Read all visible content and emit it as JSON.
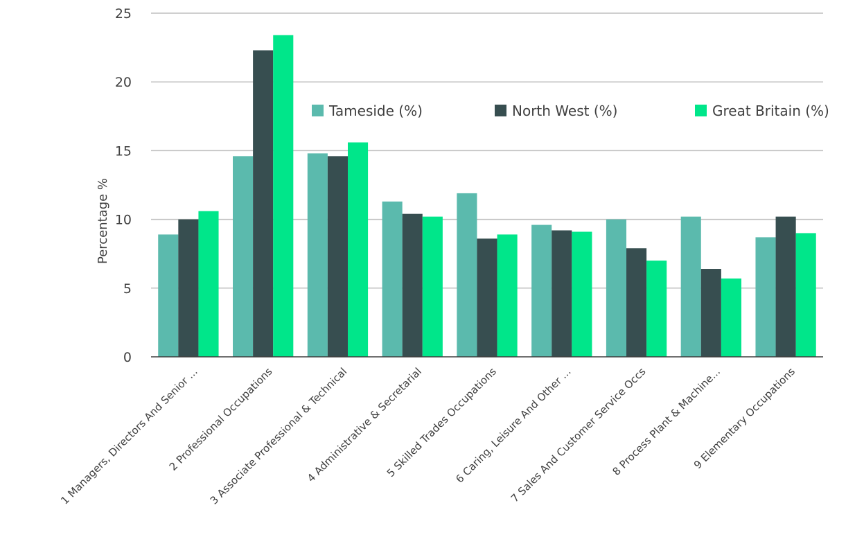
{
  "chart_data": {
    "type": "bar",
    "ylabel": "Percentage %",
    "ylim": [
      0,
      25
    ],
    "yticks": [
      0,
      5,
      10,
      15,
      20,
      25
    ],
    "ytick_labels": [
      "0",
      "5",
      "10",
      "15",
      "20",
      "25"
    ],
    "grid": true,
    "legend_position": "top-right",
    "categories": [
      "1 Managers, Directors And Senior ...",
      "2 Professional Occupations",
      "3 Associate Professional & Technical",
      "4 Administrative & Secretarial",
      "5 Skilled Trades Occupations",
      "6 Caring, Leisure And Other ...",
      "7 Sales And Customer Service Occs",
      "8 Process Plant & Machine...",
      "9 Elementary Occupations"
    ],
    "series": [
      {
        "name": "Tameside (%)",
        "color": "#5bbaad",
        "values": [
          8.9,
          14.6,
          14.8,
          11.3,
          11.9,
          9.6,
          10.0,
          10.2,
          8.7
        ]
      },
      {
        "name": "North West (%)",
        "color": "#374e50",
        "values": [
          10.0,
          22.3,
          14.6,
          10.4,
          8.6,
          9.2,
          7.9,
          6.4,
          10.2
        ]
      },
      {
        "name": "Great Britain (%)",
        "color": "#00e68a",
        "values": [
          10.6,
          23.4,
          15.6,
          10.2,
          8.9,
          9.1,
          7.0,
          5.7,
          9.0
        ]
      }
    ]
  }
}
